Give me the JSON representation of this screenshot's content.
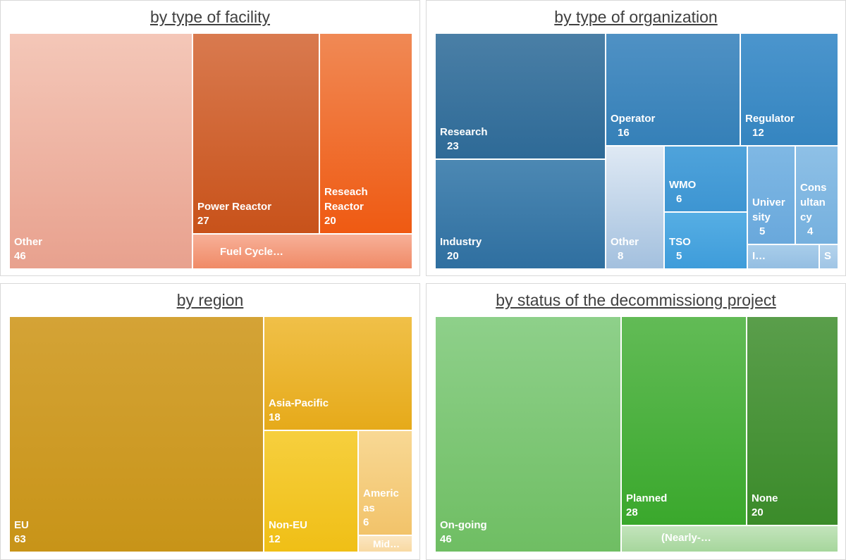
{
  "chart_data": [
    {
      "type": "treemap",
      "title": "by type of facility",
      "items": [
        {
          "label": "Other",
          "value": 46,
          "color_top": "#f4c7b8",
          "color_bottom": "#e8a18e"
        },
        {
          "label": "Power Reactor",
          "value": 27,
          "color_top": "#d97a4f",
          "color_bottom": "#c8521a"
        },
        {
          "label": "Reseach Reactor",
          "value": 20,
          "color_top": "#f08955",
          "color_bottom": "#ef5a12"
        },
        {
          "label": "Fuel Cycle…",
          "value": null,
          "color_top": "#f7b098",
          "color_bottom": "#f08a66"
        }
      ]
    },
    {
      "type": "treemap",
      "title": "by type of organization",
      "items": [
        {
          "label": "Research",
          "value": 23,
          "color_top": "#4a7fa6",
          "color_bottom": "#2e6a97"
        },
        {
          "label": "Industry",
          "value": 20,
          "color_top": "#4c88b3",
          "color_bottom": "#2f6fa0"
        },
        {
          "label": "Operator",
          "value": 16,
          "color_top": "#4f91c4",
          "color_bottom": "#3580b8"
        },
        {
          "label": "Regulator",
          "value": 12,
          "color_top": "#4b95cd",
          "color_bottom": "#3585c0"
        },
        {
          "label": "Other",
          "value": 8,
          "color_top": "#dfe9f4",
          "color_bottom": "#a3c0de"
        },
        {
          "label": "WMO",
          "value": 6,
          "color_top": "#4fa3db",
          "color_bottom": "#3d95d2"
        },
        {
          "label": "TSO",
          "value": 5,
          "color_top": "#56aee4",
          "color_bottom": "#3e9cda"
        },
        {
          "label": "University",
          "display_label": "Univer sity",
          "value": 5,
          "color_top": "#7fb8e4",
          "color_bottom": "#69a8dc"
        },
        {
          "label": "Consultancy",
          "display_label": "Cons ultan cy",
          "value": 4,
          "color_top": "#8ec0e6",
          "color_bottom": "#75b0de"
        },
        {
          "label": "I…",
          "value": null,
          "color_top": "#a8cdea",
          "color_bottom": "#94bee2"
        },
        {
          "label": "S",
          "value": null,
          "color_top": "#b4d3ec",
          "color_bottom": "#a0c5e5"
        }
      ]
    },
    {
      "type": "treemap",
      "title": "by region",
      "items": [
        {
          "label": "EU",
          "value": 63,
          "color_top": "#d4a336",
          "color_bottom": "#c89418"
        },
        {
          "label": "Asia-Pacific",
          "value": 18,
          "color_top": "#f0c048",
          "color_bottom": "#e6aa1a"
        },
        {
          "label": "Non-EU",
          "value": 12,
          "color_top": "#f6cf3e",
          "color_bottom": "#f0bf16"
        },
        {
          "label": "Americas",
          "display_label": "Americ as",
          "value": 6,
          "color_top": "#f8d894",
          "color_bottom": "#f2c36a"
        },
        {
          "label": "Mid…",
          "value": null,
          "color_top": "#fbe6c1",
          "color_bottom": "#f8d9a2"
        }
      ]
    },
    {
      "type": "treemap",
      "title": "by status of the decommissiong project",
      "items": [
        {
          "label": "On-going",
          "value": 46,
          "color_top": "#8ed08a",
          "color_bottom": "#6fbe63"
        },
        {
          "label": "Planned",
          "value": 28,
          "color_top": "#62bb56",
          "color_bottom": "#3aa82c"
        },
        {
          "label": "None",
          "value": 20,
          "color_top": "#5a9e4b",
          "color_bottom": "#3b8b2a"
        },
        {
          "label": "(Nearly-…",
          "value": null,
          "color_top": "#c3e4bc",
          "color_bottom": "#a6d69c"
        }
      ]
    }
  ]
}
